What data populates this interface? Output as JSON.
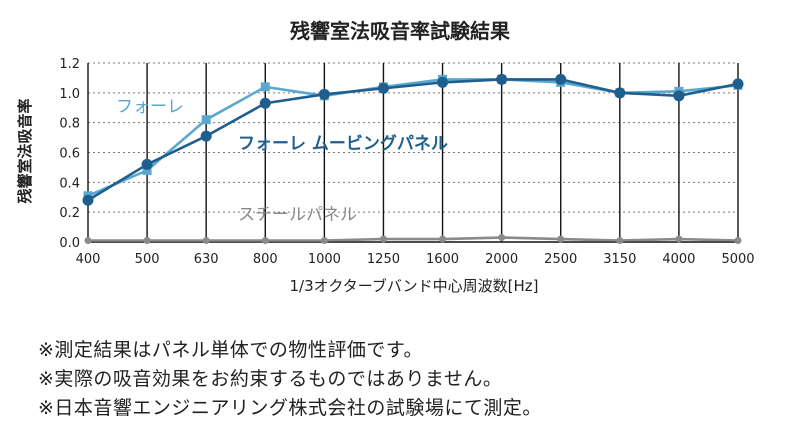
{
  "chart_data": {
    "type": "line",
    "title": "残響室法吸音率試験結果",
    "xlabel": "1/3オクターブバンド中心周波数[Hz]",
    "ylabel": "残響室法吸音率",
    "categories": [
      "400",
      "500",
      "630",
      "800",
      "1000",
      "1250",
      "1600",
      "2000",
      "2500",
      "3150",
      "4000",
      "5000"
    ],
    "yticks": [
      "0.0",
      "0.2",
      "0.4",
      "0.6",
      "0.8",
      "1.0",
      "1.2"
    ],
    "ylim": [
      0,
      1.2
    ],
    "grid": "vertical",
    "series": [
      {
        "name": "フォーレ",
        "color": "#5aa8cf",
        "marker": "square",
        "values": [
          0.31,
          0.48,
          0.82,
          1.04,
          0.98,
          1.04,
          1.09,
          1.09,
          1.07,
          1.0,
          1.01,
          1.05
        ]
      },
      {
        "name": "フォーレ ムービングパネル",
        "color": "#1f5f8e",
        "marker": "circle",
        "values": [
          0.28,
          0.52,
          0.71,
          0.93,
          0.99,
          1.03,
          1.07,
          1.09,
          1.09,
          1.0,
          0.98,
          1.06
        ]
      },
      {
        "name": "スチールパネル",
        "color": "#8a8a8a",
        "marker": "circle",
        "values": [
          0.01,
          0.01,
          0.01,
          0.01,
          0.01,
          0.02,
          0.02,
          0.03,
          0.02,
          0.01,
          0.02,
          0.01
        ]
      }
    ]
  },
  "notes": [
    "※測定結果はパネル単体での物性評価です。",
    "※実際の吸音効果をお約束するものではありません。",
    "※日本音響エンジニアリング株式会社の試験場にて測定。"
  ]
}
